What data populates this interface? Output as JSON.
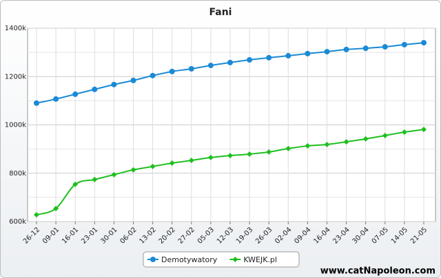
{
  "chart_data": {
    "type": "line",
    "title": "Fani",
    "categories": [
      "26-12",
      "09-01",
      "16-01",
      "23-01",
      "30-01",
      "06-02",
      "13-02",
      "20-02",
      "27-02",
      "05-03",
      "12-03",
      "19-03",
      "26-03",
      "02-04",
      "09-04",
      "16-04",
      "23-04",
      "30-04",
      "07-05",
      "14-05",
      "21-05"
    ],
    "series": [
      {
        "name": "Demotywatory",
        "color": "#1a8ad6",
        "marker": "circle",
        "values": [
          1090,
          1107,
          1127,
          1147,
          1167,
          1184,
          1204,
          1221,
          1232,
          1246,
          1258,
          1269,
          1278,
          1286,
          1295,
          1303,
          1312,
          1317,
          1323,
          1332,
          1340
        ]
      },
      {
        "name": "KWEJK.pl",
        "color": "#1fbf1f",
        "marker": "diamond",
        "values": [
          628,
          654,
          754,
          774,
          794,
          814,
          828,
          842,
          853,
          865,
          873,
          879,
          888,
          902,
          913,
          919,
          930,
          942,
          956,
          970,
          981
        ]
      }
    ],
    "ylim": [
      600,
      1400
    ],
    "yticks": [
      {
        "value": 600,
        "label": "600k"
      },
      {
        "value": 800,
        "label": "800k"
      },
      {
        "value": 1000,
        "label": "1000k"
      },
      {
        "value": 1200,
        "label": "1200k"
      },
      {
        "value": 1400,
        "label": "1400k"
      }
    ],
    "grid": true,
    "watermark": "www.catNapoleon.com"
  }
}
